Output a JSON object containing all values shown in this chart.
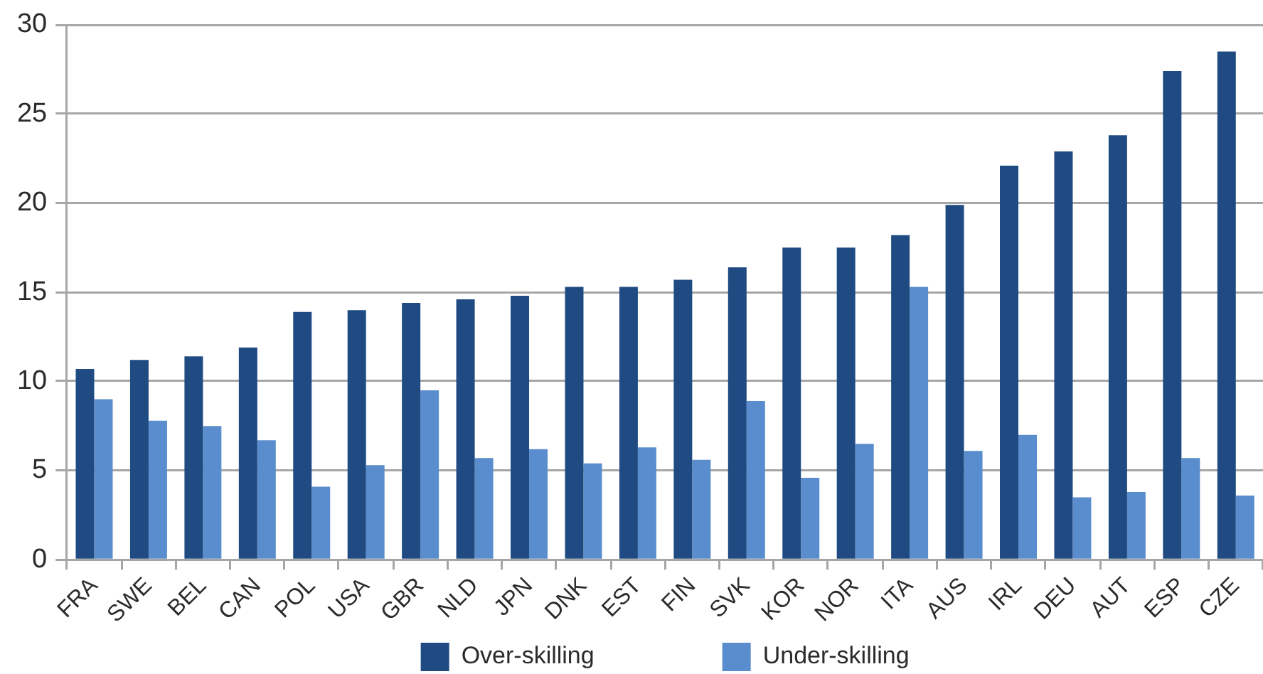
{
  "chart_data": {
    "type": "bar",
    "categories": [
      "FRA",
      "SWE",
      "BEL",
      "CAN",
      "POL",
      "USA",
      "GBR",
      "NLD",
      "JPN",
      "DNK",
      "EST",
      "FIN",
      "SVK",
      "KOR",
      "NOR",
      "ITA",
      "AUS",
      "IRL",
      "DEU",
      "AUT",
      "ESP",
      "CZE"
    ],
    "series": [
      {
        "name": "Over-skilling",
        "color": "#1f4b82",
        "values": [
          10.7,
          11.2,
          11.4,
          11.9,
          13.9,
          14.0,
          14.4,
          14.6,
          14.8,
          15.3,
          15.3,
          15.7,
          16.4,
          17.5,
          17.5,
          18.2,
          19.9,
          22.1,
          22.9,
          23.8,
          27.4,
          28.5
        ]
      },
      {
        "name": "Under-skilling",
        "color": "#5a8dcd",
        "values": [
          9.0,
          7.8,
          7.5,
          6.7,
          4.1,
          5.3,
          9.5,
          5.7,
          6.2,
          5.4,
          6.3,
          5.6,
          8.9,
          4.6,
          6.5,
          15.3,
          6.1,
          7.0,
          3.5,
          3.8,
          5.7,
          3.6
        ]
      }
    ],
    "ylim": [
      0,
      30
    ],
    "yticks": [
      0,
      5,
      10,
      15,
      20,
      25,
      30
    ],
    "grid": "y",
    "legend": "bottom"
  }
}
